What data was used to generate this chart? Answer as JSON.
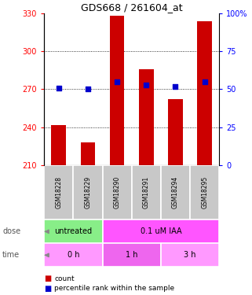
{
  "title": "GDS668 / 261604_at",
  "samples": [
    "GSM18228",
    "GSM18229",
    "GSM18290",
    "GSM18291",
    "GSM18294",
    "GSM18295"
  ],
  "counts": [
    242,
    228,
    328,
    286,
    262,
    324
  ],
  "percentiles": [
    51,
    50,
    55,
    53,
    52,
    55
  ],
  "ymin": 210,
  "ymax": 330,
  "y2min": 0,
  "y2max": 100,
  "yticks": [
    210,
    240,
    270,
    300,
    330
  ],
  "y2ticks": [
    0,
    25,
    50,
    75,
    100
  ],
  "bar_color": "#cc0000",
  "dot_color": "#0000cc",
  "dose_labels": [
    {
      "label": "untreated",
      "start": 0,
      "end": 2,
      "color": "#88ee88"
    },
    {
      "label": "0.1 uM IAA",
      "start": 2,
      "end": 6,
      "color": "#ff55ff"
    }
  ],
  "time_labels": [
    {
      "label": "0 h",
      "start": 0,
      "end": 2,
      "color": "#ff99ff"
    },
    {
      "label": "1 h",
      "start": 2,
      "end": 4,
      "color": "#ee66ee"
    },
    {
      "label": "3 h",
      "start": 4,
      "end": 6,
      "color": "#ff99ff"
    }
  ],
  "tick_label_bg": "#c8c8c8",
  "legend_count_label": "count",
  "legend_pct_label": "percentile rank within the sample",
  "dose_arrow_label": "dose",
  "time_arrow_label": "time"
}
